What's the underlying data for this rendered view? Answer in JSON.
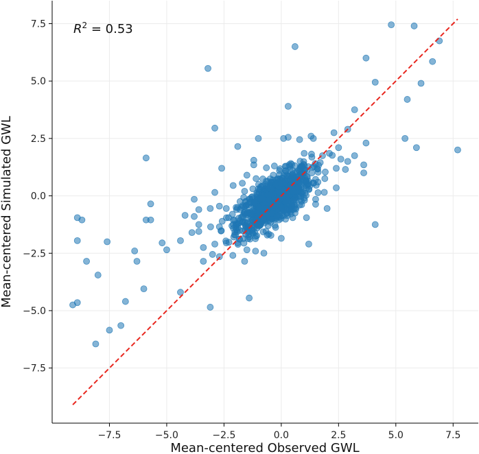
{
  "chart_data": {
    "type": "scatter",
    "xlabel": "Mean-centered Observed GWL",
    "ylabel": "Mean-centered Simulated GWL",
    "xlim": [
      -10.0,
      8.6
    ],
    "ylim": [
      -9.9,
      8.5
    ],
    "x_ticks": [
      -7.5,
      -5.0,
      -2.5,
      0.0,
      2.5,
      5.0,
      7.5
    ],
    "x_tick_labels": [
      "−7.5",
      "−5.0",
      "−2.5",
      "0.0",
      "2.5",
      "5.0",
      "7.5"
    ],
    "y_ticks": [
      -7.5,
      -5.0,
      -2.5,
      0.0,
      2.5,
      5.0,
      7.5
    ],
    "y_tick_labels": [
      "−7.5",
      "−5.0",
      "−2.5",
      "0.0",
      "2.5",
      "5.0",
      "7.5"
    ],
    "grid": true,
    "annotation": {
      "prefix": "R",
      "sup": "2",
      "text": " = 0.53"
    },
    "reference_line": {
      "x": [
        -9.1,
        7.7
      ],
      "y": [
        -9.1,
        7.7
      ],
      "color": "#e8261e",
      "style": "dashed"
    },
    "point_color": "#1f77b4",
    "series": [
      {
        "points": [
          [
            -9.1,
            -4.75
          ],
          [
            -8.9,
            -4.65
          ],
          [
            -8.9,
            -1.95
          ],
          [
            -8.9,
            -0.95
          ],
          [
            -8.7,
            -1.05
          ],
          [
            -8.5,
            -2.85
          ],
          [
            -8.0,
            -3.45
          ],
          [
            -8.1,
            -6.45
          ],
          [
            -7.6,
            -2.0
          ],
          [
            -7.5,
            -5.85
          ],
          [
            -7.0,
            -5.65
          ],
          [
            -6.8,
            -4.6
          ],
          [
            -6.3,
            -2.85
          ],
          [
            -6.4,
            -2.4
          ],
          [
            -6.0,
            -4.05
          ],
          [
            -5.9,
            1.65
          ],
          [
            -5.9,
            -1.05
          ],
          [
            -5.7,
            -1.05
          ],
          [
            -5.7,
            -0.35
          ],
          [
            -5.2,
            -2.05
          ],
          [
            -5.0,
            -2.35
          ],
          [
            -4.4,
            -4.2
          ],
          [
            -4.4,
            -1.95
          ],
          [
            -4.2,
            -0.85
          ],
          [
            -3.9,
            -1.6
          ],
          [
            -3.8,
            -0.15
          ],
          [
            -3.8,
            -0.9
          ],
          [
            -3.6,
            -1.25
          ],
          [
            -3.6,
            -1.55
          ],
          [
            -3.6,
            -0.6
          ],
          [
            -3.4,
            -2.25
          ],
          [
            -3.4,
            -2.85
          ],
          [
            -3.2,
            5.55
          ],
          [
            -3.1,
            -4.85
          ],
          [
            -3.1,
            -0.55
          ],
          [
            -3.0,
            -2.55
          ],
          [
            -2.9,
            2.95
          ],
          [
            -2.9,
            0.15
          ],
          [
            -2.9,
            -2.1
          ],
          [
            -2.7,
            -0.45
          ],
          [
            -2.7,
            -1.35
          ],
          [
            -2.7,
            -2.65
          ],
          [
            -2.6,
            1.2
          ],
          [
            -2.4,
            -2.05
          ],
          [
            -2.4,
            -0.55
          ],
          [
            -2.3,
            -0.95
          ],
          [
            -2.1,
            0.45
          ],
          [
            -2.1,
            -1.05
          ],
          [
            -2.0,
            -1.7
          ],
          [
            -1.9,
            -2.05
          ],
          [
            -1.9,
            2.15
          ],
          [
            -1.8,
            -0.25
          ],
          [
            -1.8,
            -0.6
          ],
          [
            -1.7,
            0.55
          ],
          [
            -1.7,
            -1.15
          ],
          [
            -1.6,
            -0.8
          ],
          [
            -1.6,
            -2.85
          ],
          [
            -1.5,
            -2.35
          ],
          [
            -1.5,
            0.9
          ],
          [
            -1.4,
            -1.25
          ],
          [
            -1.4,
            -4.45
          ],
          [
            -1.3,
            -0.3
          ],
          [
            -1.2,
            1.35
          ],
          [
            -1.2,
            1.55
          ],
          [
            -1.0,
            2.5
          ],
          [
            -1.0,
            -0.95
          ],
          [
            -0.8,
            -1.05
          ],
          [
            -0.6,
            0.05
          ],
          [
            -0.5,
            -0.35
          ],
          [
            -0.3,
            1.3
          ],
          [
            -0.1,
            -1.05
          ],
          [
            0.0,
            -1.85
          ],
          [
            0.0,
            -0.5
          ],
          [
            0.2,
            -0.6
          ],
          [
            0.1,
            2.5
          ],
          [
            0.3,
            2.55
          ],
          [
            0.3,
            3.9
          ],
          [
            0.5,
            -0.95
          ],
          [
            0.6,
            6.5
          ],
          [
            0.8,
            2.45
          ],
          [
            0.8,
            1.05
          ],
          [
            1.0,
            1.85
          ],
          [
            1.1,
            -0.95
          ],
          [
            1.2,
            -2.1
          ],
          [
            1.3,
            2.6
          ],
          [
            1.4,
            2.5
          ],
          [
            1.5,
            -0.15
          ],
          [
            1.6,
            0.6
          ],
          [
            1.7,
            1.45
          ],
          [
            1.8,
            1.75
          ],
          [
            1.9,
            0.75
          ],
          [
            2.0,
            -0.55
          ],
          [
            2.1,
            1.85
          ],
          [
            2.3,
            2.75
          ],
          [
            2.4,
            0.35
          ],
          [
            2.4,
            1.2
          ],
          [
            2.5,
            2.1
          ],
          [
            2.6,
            1.6
          ],
          [
            2.8,
            1.15
          ],
          [
            2.9,
            2.9
          ],
          [
            2.9,
            1.5
          ],
          [
            3.2,
            3.75
          ],
          [
            3.2,
            1.75
          ],
          [
            3.6,
            1.35
          ],
          [
            3.6,
            1.0
          ],
          [
            3.7,
            2.3
          ],
          [
            3.7,
            6.0
          ],
          [
            4.1,
            4.95
          ],
          [
            4.1,
            -1.25
          ],
          [
            4.8,
            7.45
          ],
          [
            5.4,
            2.5
          ],
          [
            5.5,
            4.2
          ],
          [
            5.8,
            7.4
          ],
          [
            5.9,
            2.1
          ],
          [
            6.1,
            4.9
          ],
          [
            6.6,
            5.85
          ],
          [
            6.9,
            6.75
          ],
          [
            7.7,
            2.0
          ],
          [
            -1.0,
            0.3
          ],
          [
            -0.5,
            0.4
          ],
          [
            0.4,
            0.45
          ],
          [
            0.8,
            -0.4
          ],
          [
            1.2,
            0.3
          ],
          [
            -0.2,
            -0.9
          ],
          [
            0.6,
            -0.75
          ],
          [
            1.0,
            -0.1
          ],
          [
            -1.6,
            0.2
          ],
          [
            -1.1,
            0.75
          ],
          [
            0.2,
            1.1
          ],
          [
            -0.4,
            -0.75
          ]
        ]
      }
    ],
    "cluster": {
      "center": [
        -0.3,
        -0.2
      ],
      "count": 900,
      "spread": [
        0.8,
        0.5
      ]
    }
  }
}
